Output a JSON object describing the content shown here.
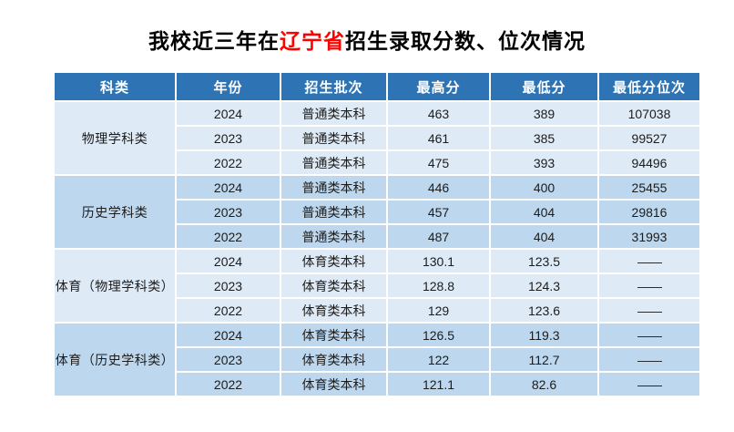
{
  "title": {
    "prefix": "我校近三年在",
    "highlight": "辽宁省",
    "suffix": "招生录取分数、位次情况"
  },
  "colors": {
    "header_bg": "#2e74b5",
    "header_text": "#ffffff",
    "group_light_bg": "#deeaf6",
    "group_dark_bg": "#bdd7ee",
    "title_highlight": "#ff0000",
    "body_text": "#1c1c1c"
  },
  "table": {
    "headers": [
      "科类",
      "年份",
      "招生批次",
      "最高分",
      "最低分",
      "最低分位次"
    ],
    "groups": [
      {
        "category": "物理学科类",
        "rows": [
          {
            "year": "2024",
            "batch": "普通类本科",
            "max_score": "463",
            "min_score": "389",
            "min_rank": "107038"
          },
          {
            "year": "2023",
            "batch": "普通类本科",
            "max_score": "461",
            "min_score": "385",
            "min_rank": "99527"
          },
          {
            "year": "2022",
            "batch": "普通类本科",
            "max_score": "475",
            "min_score": "393",
            "min_rank": "94496"
          }
        ]
      },
      {
        "category": "历史学科类",
        "rows": [
          {
            "year": "2024",
            "batch": "普通类本科",
            "max_score": "446",
            "min_score": "400",
            "min_rank": "25455"
          },
          {
            "year": "2023",
            "batch": "普通类本科",
            "max_score": "457",
            "min_score": "404",
            "min_rank": "29816"
          },
          {
            "year": "2022",
            "batch": "普通类本科",
            "max_score": "487",
            "min_score": "404",
            "min_rank": "31993"
          }
        ]
      },
      {
        "category": "体育（物理学科类）",
        "rows": [
          {
            "year": "2024",
            "batch": "体育类本科",
            "max_score": "130.1",
            "min_score": "123.5",
            "min_rank": "——"
          },
          {
            "year": "2023",
            "batch": "体育类本科",
            "max_score": "128.8",
            "min_score": "124.3",
            "min_rank": "——"
          },
          {
            "year": "2022",
            "batch": "体育类本科",
            "max_score": "129",
            "min_score": "123.6",
            "min_rank": "——"
          }
        ]
      },
      {
        "category": "体育（历史学科类）",
        "rows": [
          {
            "year": "2024",
            "batch": "体育类本科",
            "max_score": "126.5",
            "min_score": "119.3",
            "min_rank": "——"
          },
          {
            "year": "2023",
            "batch": "体育类本科",
            "max_score": "122",
            "min_score": "112.7",
            "min_rank": "——"
          },
          {
            "year": "2022",
            "batch": "体育类本科",
            "max_score": "121.1",
            "min_score": "82.6",
            "min_rank": "——"
          }
        ]
      }
    ]
  }
}
